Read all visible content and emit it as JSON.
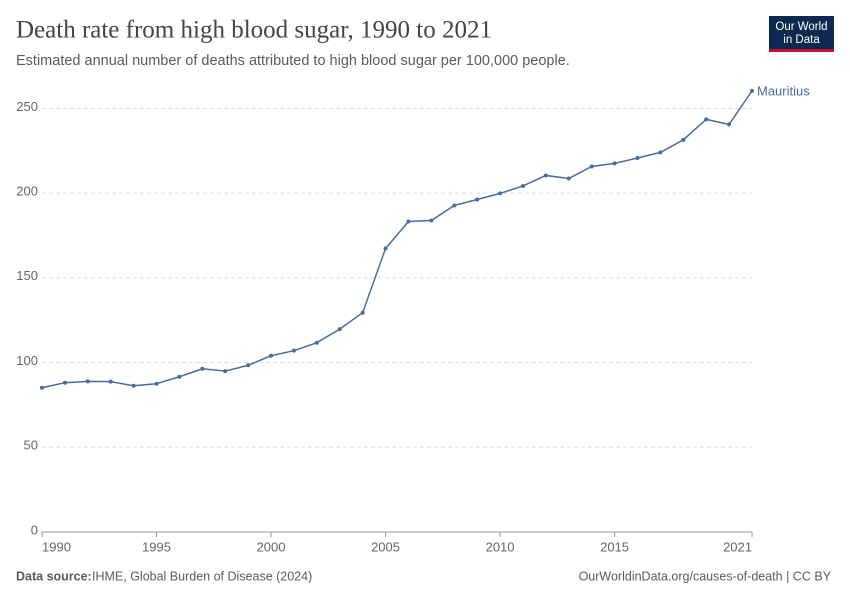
{
  "chart_data": {
    "type": "line",
    "title": "Death rate from high blood sugar, 1990 to 2021",
    "subtitle": "Estimated annual number of deaths attributed to high blood sugar per 100,000 people.",
    "source_label": "Data source:",
    "source": "IHME, Global Burden of Disease (2024)",
    "url": "OurWorldinData.org/causes-of-death | CC BY",
    "logo": [
      "Our World",
      "in Data"
    ],
    "x": [
      1990,
      1991,
      1992,
      1993,
      1994,
      1995,
      1996,
      1997,
      1998,
      1999,
      2000,
      2001,
      2002,
      2003,
      2004,
      2005,
      2006,
      2007,
      2008,
      2009,
      2010,
      2011,
      2012,
      2013,
      2014,
      2015,
      2016,
      2017,
      2018,
      2019,
      2020,
      2021
    ],
    "series": [
      {
        "name": "Mauritius",
        "color": "#4c6a9c",
        "values": [
          85.1,
          88.1,
          88.9,
          88.7,
          86.3,
          87.5,
          91.6,
          96.3,
          94.9,
          98.4,
          104,
          107,
          111.7,
          119.7,
          129.4,
          167.3,
          183.2,
          183.8,
          192.7,
          196.2,
          199.8,
          204.2,
          210.4,
          208.6,
          215.7,
          217.5,
          220.7,
          224,
          231.4,
          243.5,
          240.5,
          260.3
        ]
      }
    ],
    "xlim": [
      1990,
      2021
    ],
    "xticks": [
      1990,
      1995,
      2000,
      2005,
      2010,
      2015,
      2021
    ],
    "ylim": [
      0,
      262
    ],
    "yticks": [
      0,
      50,
      100,
      150,
      200,
      250
    ],
    "grid": true
  }
}
